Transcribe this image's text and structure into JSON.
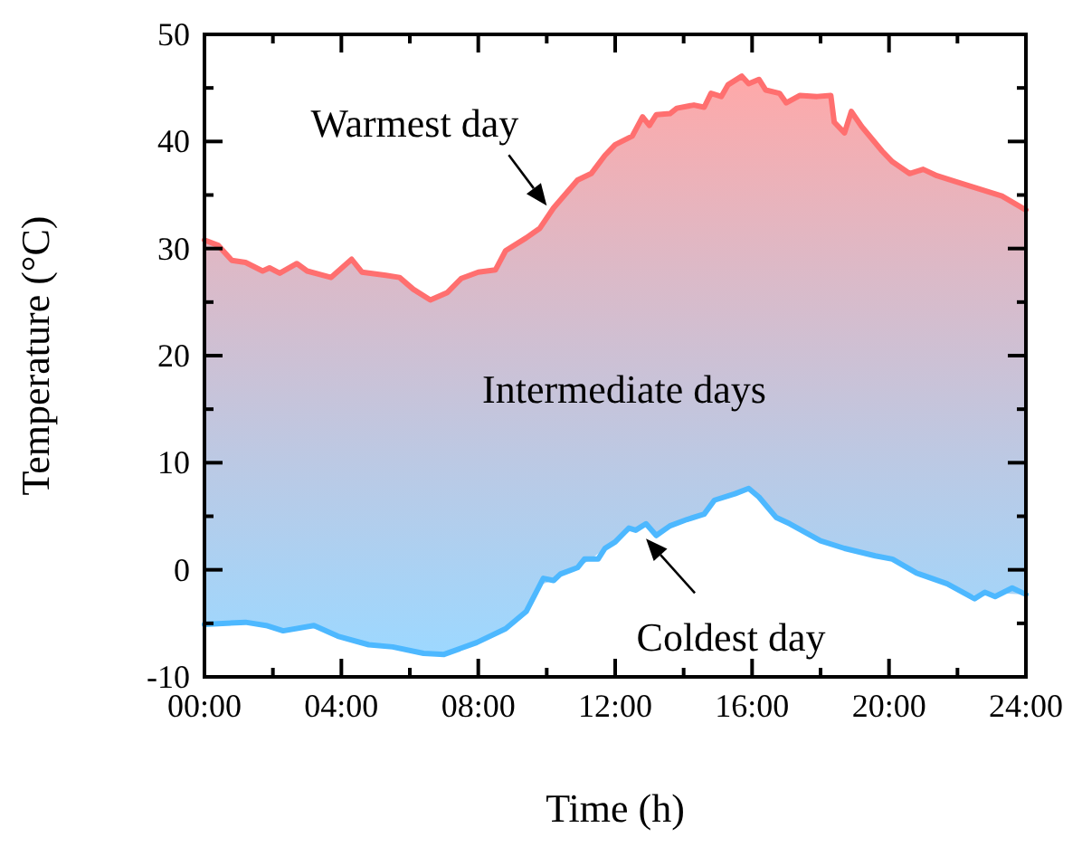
{
  "chart_data": {
    "type": "line",
    "xlabel": "Time (h)",
    "ylabel": "Temperature (°C)",
    "xlim": [
      0,
      24
    ],
    "ylim": [
      -10,
      50
    ],
    "xticks": [
      {
        "value": 0,
        "label": "00:00"
      },
      {
        "value": 2,
        "label": null
      },
      {
        "value": 4,
        "label": "04:00"
      },
      {
        "value": 6,
        "label": null
      },
      {
        "value": 8,
        "label": "08:00"
      },
      {
        "value": 10,
        "label": null
      },
      {
        "value": 12,
        "label": "12:00"
      },
      {
        "value": 14,
        "label": null
      },
      {
        "value": 16,
        "label": "16:00"
      },
      {
        "value": 18,
        "label": null
      },
      {
        "value": 20,
        "label": "20:00"
      },
      {
        "value": 22,
        "label": null
      },
      {
        "value": 24,
        "label": "24:00"
      }
    ],
    "yticks": [
      -10,
      {
        "value": -5,
        "label": null
      },
      0,
      {
        "value": 5,
        "label": null
      },
      10,
      {
        "value": 15,
        "label": null
      },
      20,
      {
        "value": 25,
        "label": null
      },
      30,
      {
        "value": 35,
        "label": null
      },
      40,
      {
        "value": 45,
        "label": null
      },
      50
    ],
    "grid": false,
    "series": [
      {
        "color": "#ff6f6f",
        "x": [
          0,
          0.4,
          0.8,
          1.2,
          1.7,
          1.9,
          2.2,
          2.7,
          3.0,
          3.7,
          4.3,
          4.6,
          5.3,
          5.7,
          6.1,
          6.6,
          7.1,
          7.5,
          8.0,
          8.5,
          8.8,
          9.4,
          9.8,
          10.2,
          10.9,
          11.3,
          11.7,
          12.0,
          12.5,
          12.8,
          13.0,
          13.2,
          13.6,
          13.8,
          14.3,
          14.6,
          14.8,
          15.1,
          15.3,
          15.7,
          15.9,
          16.2,
          16.4,
          16.8,
          17.0,
          17.4,
          17.9,
          18.3,
          18.4,
          18.7,
          18.9,
          19.2,
          19.8,
          20.1,
          20.6,
          21.0,
          21.4,
          21.9,
          22.6,
          23.3,
          24
        ],
        "values": [
          30.8,
          30.3,
          28.9,
          28.7,
          27.9,
          28.2,
          27.7,
          28.6,
          27.9,
          27.3,
          29.0,
          27.8,
          27.5,
          27.3,
          26.2,
          25.2,
          25.9,
          27.2,
          27.8,
          28.0,
          29.8,
          31.0,
          31.9,
          33.8,
          36.4,
          37.0,
          38.7,
          39.7,
          40.5,
          42.3,
          41.5,
          42.5,
          42.6,
          43.1,
          43.4,
          43.2,
          44.5,
          44.2,
          45.3,
          46.1,
          45.4,
          45.8,
          44.8,
          44.5,
          43.6,
          44.3,
          44.2,
          44.3,
          41.8,
          40.8,
          42.8,
          41.4,
          39.1,
          38.1,
          37.0,
          37.4,
          36.8,
          36.3,
          35.6,
          34.9,
          33.6
        ],
        "upper": [
          30.8,
          30.3,
          28.9,
          28.7,
          27.9,
          28.2,
          27.7,
          28.6,
          27.9,
          27.3,
          29.0,
          27.8,
          27.5,
          27.3,
          26.2,
          25.2,
          25.9,
          27.2,
          27.8,
          28.0,
          29.8,
          31.0,
          31.9,
          33.8,
          36.4,
          37.0,
          38.7,
          39.7,
          40.5,
          42.3,
          41.5,
          42.5,
          42.6,
          43.1,
          43.4,
          43.2,
          44.5,
          44.2,
          45.3,
          46.1,
          45.4,
          45.8,
          44.8,
          44.5,
          43.6,
          44.3,
          44.2,
          44.3,
          41.8,
          40.8,
          42.8,
          41.4,
          39.1,
          38.1,
          37.0,
          37.4,
          36.8,
          36.3,
          35.6,
          34.9,
          33.6
        ],
        "lower": [
          -5.1,
          -5.0,
          -5.0,
          -4.9,
          -5.1,
          -5.3,
          -5.6,
          -5.5,
          -5.3,
          -5.9,
          -6.6,
          -6.8,
          -7.1,
          -7.3,
          -7.6,
          -7.8,
          -7.8,
          -7.3,
          -6.7,
          -6.2,
          -5.5,
          -3.9,
          -1.4,
          -1.0,
          0.2,
          1.0,
          2.0,
          2.6,
          3.8,
          4.1,
          3.9,
          3.2,
          4.1,
          4.3,
          4.9,
          5.2,
          6.1,
          6.7,
          6.9,
          7.4,
          7.6,
          6.8,
          6.0,
          4.8,
          4.5,
          3.8,
          2.9,
          2.4,
          2.3,
          2.0,
          1.8,
          1.6,
          1.2,
          1.0,
          0.1,
          -0.5,
          -1.0,
          -1.7,
          -2.5,
          -2.2,
          -2.3
        ]
      },
      {
        "color": "#4db8ff",
        "x": [
          0,
          1.2,
          1.8,
          2.3,
          3.2,
          3.9,
          4.8,
          5.5,
          6.4,
          7.0,
          7.95,
          8.8,
          9.4,
          9.9,
          10.2,
          10.4,
          10.9,
          11.1,
          11.5,
          11.7,
          12.0,
          12.4,
          12.6,
          12.9,
          13.2,
          13.6,
          14.1,
          14.6,
          14.9,
          15.5,
          15.9,
          16.2,
          16.7,
          17.1,
          18.0,
          18.7,
          19.6,
          20.1,
          20.8,
          21.7,
          22.5,
          22.8,
          23.1,
          23.6,
          24
        ],
        "values": [
          -5.1,
          -4.9,
          -5.2,
          -5.7,
          -5.2,
          -6.2,
          -7.0,
          -7.2,
          -7.8,
          -7.9,
          -6.8,
          -5.5,
          -3.9,
          -0.8,
          -1.0,
          -0.4,
          0.2,
          1.0,
          1.0,
          2.0,
          2.6,
          3.9,
          3.7,
          4.3,
          3.2,
          4.1,
          4.7,
          5.2,
          6.5,
          7.1,
          7.6,
          6.8,
          4.9,
          4.3,
          2.7,
          2.0,
          1.3,
          1.0,
          -0.3,
          -1.3,
          -2.7,
          -2.1,
          -2.5,
          -1.7,
          -2.3
        ]
      }
    ],
    "annotations": [
      {
        "text": "Warmest day",
        "x": 10,
        "y": 34
      },
      {
        "text": "Coldest day",
        "x": 12.9,
        "y": 2.9
      },
      "Intermediate days"
    ]
  }
}
